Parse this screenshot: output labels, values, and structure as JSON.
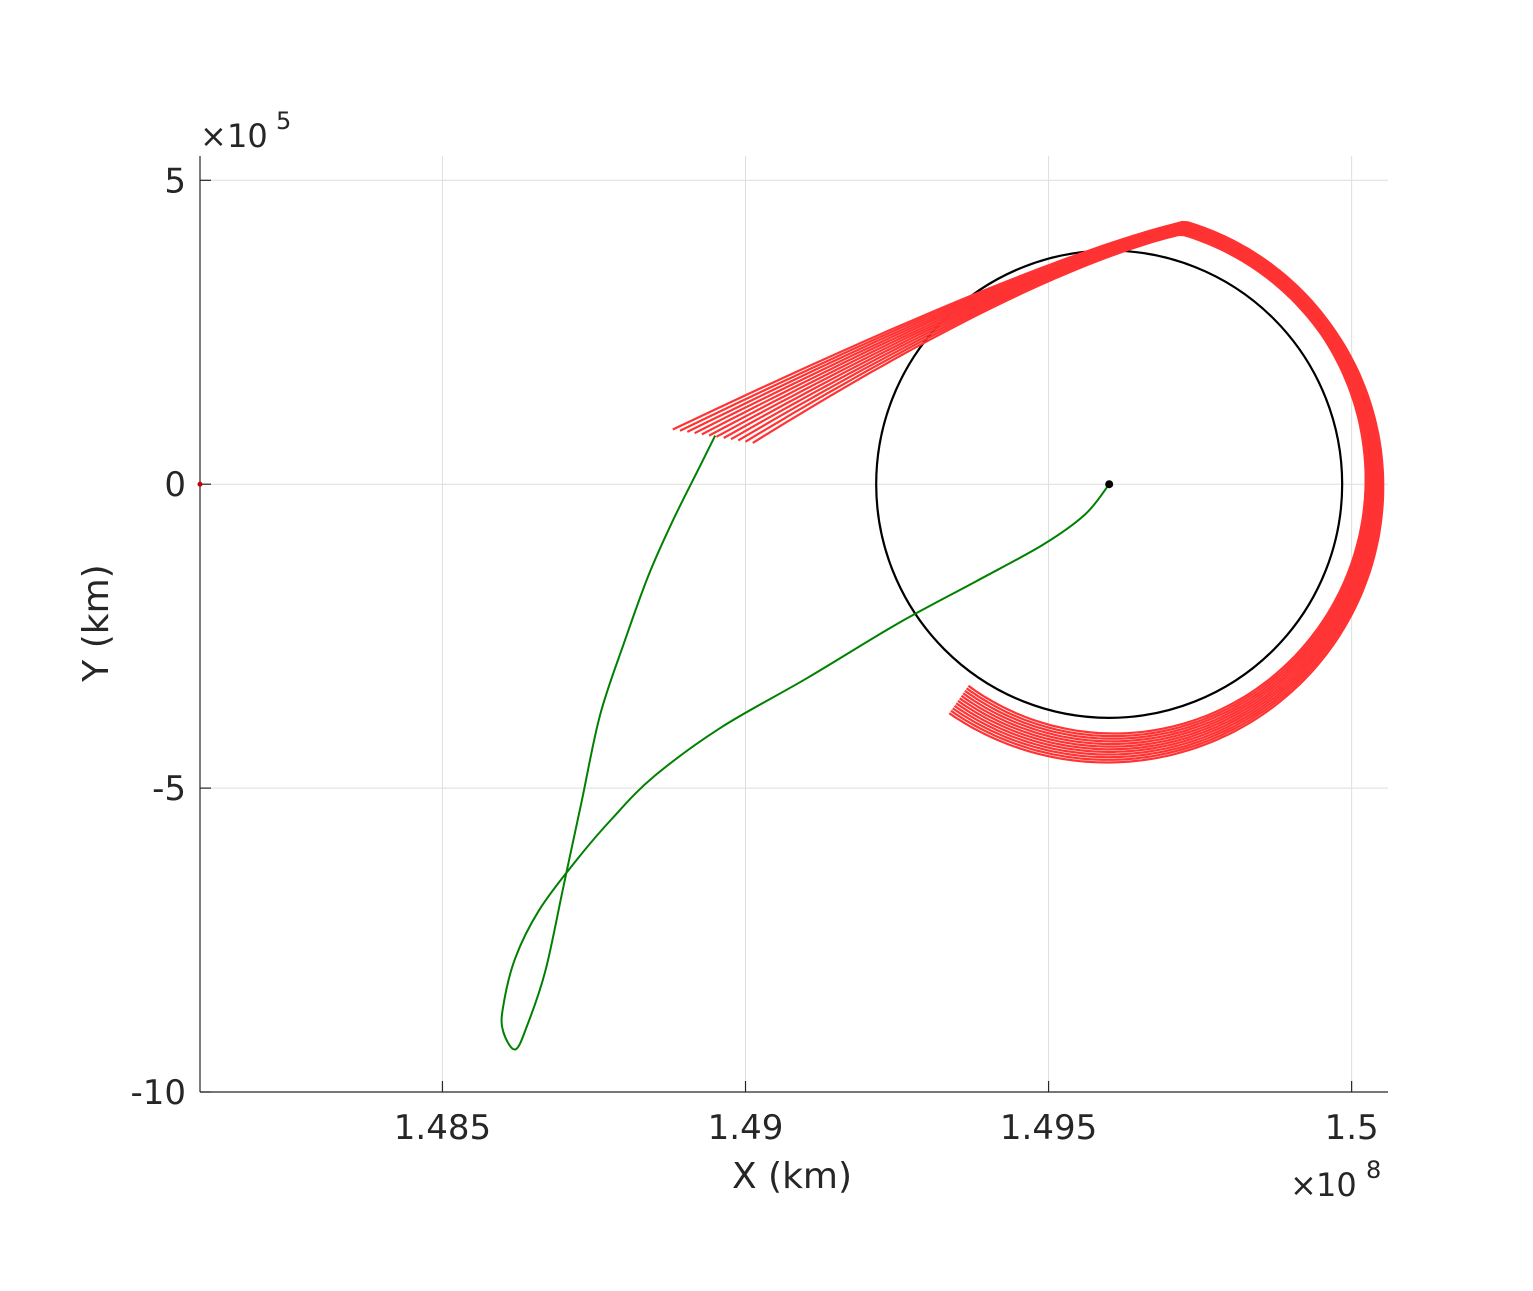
{
  "chart_data": {
    "type": "line",
    "title": "",
    "xlabel": "X (km)",
    "ylabel": "Y (km)",
    "x_exponent_label": "10",
    "x_exponent_power": "8",
    "y_exponent_label": "10",
    "y_exponent_power": "5",
    "x_exponent_base": 100000000,
    "y_exponent_base": 100000,
    "xlim": [
      148100000,
      150060000
    ],
    "ylim": [
      -1000000,
      540000
    ],
    "grid": true,
    "x_ticks": [
      {
        "value": 148500000,
        "label": "1.485"
      },
      {
        "value": 149000000,
        "label": "1.49"
      },
      {
        "value": 149500000,
        "label": "1.495"
      },
      {
        "value": 150000000,
        "label": "1.5"
      }
    ],
    "y_ticks": [
      {
        "value": 500000,
        "label": "5"
      },
      {
        "value": 0,
        "label": "0"
      },
      {
        "value": -500000,
        "label": "-5"
      },
      {
        "value": -1000000,
        "label": "-10"
      }
    ],
    "colors": {
      "orbit": "#000000",
      "transfer": "#008000",
      "spiral": "#ff3333",
      "origin_marker": "#cc0000"
    },
    "circle": {
      "center": [
        149600000,
        0
      ],
      "radius": 384400
    },
    "central_point": [
      149600000,
      0
    ],
    "origin_marker": [
      148100000,
      0
    ],
    "transfer_trajectory": {
      "x": [
        149600000,
        149560000,
        149490000,
        149380000,
        149250000,
        149100000,
        148960000,
        148850000,
        148780000,
        148720000,
        148660000,
        148620000,
        148600000,
        148600000,
        148620000,
        148640000,
        148670000,
        148700000,
        148730000,
        148760000,
        148800000,
        148840000,
        148880000,
        148920000,
        148950000
      ],
      "y": [
        0,
        -50000,
        -100000,
        -160000,
        -230000,
        -320000,
        -400000,
        -480000,
        -550000,
        -620000,
        -700000,
        -780000,
        -860000,
        -900000,
        -930000,
        -890000,
        -800000,
        -660000,
        -520000,
        -380000,
        -260000,
        -150000,
        -60000,
        20000,
        80000
      ]
    },
    "spiral": {
      "turn_degrees": 295,
      "end_angle_degrees": 130,
      "start_angle_degrees": -125,
      "strands": [
        {
          "a0": 460000,
          "a1": 450000,
          "b0": 450000,
          "b1": 470000
        },
        {
          "a0": 455000,
          "a1": 456000,
          "b0": 448000,
          "b1": 468000
        },
        {
          "a0": 450000,
          "a1": 462000,
          "b0": 446000,
          "b1": 466000
        },
        {
          "a0": 445000,
          "a1": 468000,
          "b0": 444000,
          "b1": 464000
        },
        {
          "a0": 440000,
          "a1": 474000,
          "b0": 442000,
          "b1": 462000
        },
        {
          "a0": 435000,
          "a1": 480000,
          "b0": 440000,
          "b1": 460000
        },
        {
          "a0": 430000,
          "a1": 486000,
          "b0": 438000,
          "b1": 458000
        },
        {
          "a0": 425000,
          "a1": 492000,
          "b0": 436000,
          "b1": 456000
        },
        {
          "a0": 420000,
          "a1": 498000,
          "b0": 434000,
          "b1": 454000
        },
        {
          "a0": 415000,
          "a1": 504000,
          "b0": 432000,
          "b1": 452000
        },
        {
          "a0": 410000,
          "a1": 510000,
          "b0": 430000,
          "b1": 450000
        },
        {
          "a0": 405000,
          "a1": 516000,
          "b0": 428000,
          "b1": 448000
        }
      ]
    }
  }
}
